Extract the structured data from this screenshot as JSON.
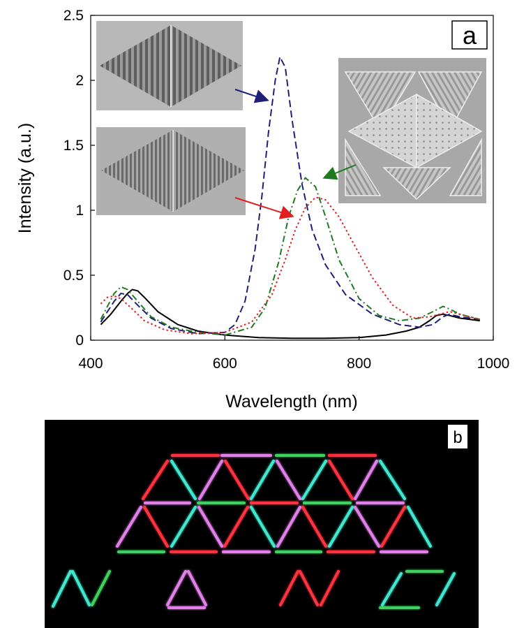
{
  "chart_data": {
    "type": "line",
    "panel_label": "a",
    "xlabel": "Wavelength (nm)",
    "ylabel": "Intensity (a.u.)",
    "xlim": [
      400,
      1000
    ],
    "ylim": [
      0,
      2.5
    ],
    "xticks": [
      "400",
      "600",
      "800",
      "1000"
    ],
    "yticks": [
      "0",
      "0.5",
      "1",
      "1.5",
      "2",
      "2.5"
    ],
    "grid": false,
    "legend": "none",
    "series": [
      {
        "color": "#000000",
        "style": "solid",
        "x": [
          415,
          430,
          445,
          455,
          462,
          470,
          480,
          500,
          530,
          560,
          600,
          650,
          700,
          750,
          800,
          840,
          870,
          890,
          905,
          915,
          925,
          935,
          950,
          965,
          980
        ],
        "y": [
          0.12,
          0.2,
          0.3,
          0.36,
          0.39,
          0.38,
          0.33,
          0.22,
          0.12,
          0.07,
          0.04,
          0.02,
          0.015,
          0.015,
          0.02,
          0.04,
          0.07,
          0.1,
          0.15,
          0.19,
          0.2,
          0.19,
          0.17,
          0.16,
          0.15
        ]
      },
      {
        "color": "#1f1f7a",
        "style": "dashed",
        "x": [
          415,
          425,
          435,
          445,
          455,
          470,
          490,
          520,
          560,
          600,
          615,
          630,
          645,
          655,
          665,
          675,
          682,
          690,
          700,
          715,
          730,
          750,
          780,
          820,
          860,
          890,
          910,
          925,
          935,
          950,
          965,
          980
        ],
        "y": [
          0.14,
          0.22,
          0.3,
          0.36,
          0.35,
          0.27,
          0.17,
          0.09,
          0.05,
          0.06,
          0.12,
          0.3,
          0.7,
          1.1,
          1.6,
          2.0,
          2.18,
          2.1,
          1.7,
          1.2,
          0.85,
          0.58,
          0.35,
          0.2,
          0.12,
          0.1,
          0.12,
          0.18,
          0.2,
          0.18,
          0.17,
          0.16
        ]
      },
      {
        "color": "#1f7a1f",
        "style": "dashdot",
        "x": [
          415,
          425,
          435,
          445,
          455,
          470,
          490,
          520,
          560,
          600,
          640,
          660,
          680,
          695,
          708,
          720,
          735,
          750,
          770,
          800,
          830,
          860,
          890,
          910,
          925,
          935,
          950,
          965,
          980
        ],
        "y": [
          0.16,
          0.26,
          0.36,
          0.41,
          0.39,
          0.3,
          0.18,
          0.1,
          0.06,
          0.04,
          0.1,
          0.25,
          0.6,
          0.95,
          1.15,
          1.25,
          1.18,
          0.95,
          0.62,
          0.32,
          0.19,
          0.15,
          0.17,
          0.22,
          0.26,
          0.24,
          0.2,
          0.18,
          0.16
        ]
      },
      {
        "color": "#e02020",
        "style": "dotted",
        "x": [
          415,
          425,
          435,
          445,
          460,
          480,
          510,
          550,
          600,
          640,
          670,
          690,
          705,
          720,
          735,
          750,
          770,
          790,
          820,
          850,
          880,
          905,
          920,
          935,
          950,
          965,
          980
        ],
        "y": [
          0.28,
          0.33,
          0.34,
          0.32,
          0.25,
          0.15,
          0.08,
          0.05,
          0.06,
          0.14,
          0.35,
          0.62,
          0.85,
          1.02,
          1.1,
          1.08,
          0.95,
          0.76,
          0.48,
          0.27,
          0.17,
          0.18,
          0.2,
          0.22,
          0.2,
          0.18,
          0.16
        ]
      }
    ]
  },
  "panel_b_label": "b",
  "colors": {
    "red": "#ff3040",
    "cyan": "#40e8d0",
    "magenta": "#e080e8",
    "green": "#40d060",
    "inset_bg": "#b8b8b8"
  },
  "icons": [
    "sem-inset-rhombus-grating",
    "sem-inset-triangle-array",
    "arrow-icon"
  ]
}
